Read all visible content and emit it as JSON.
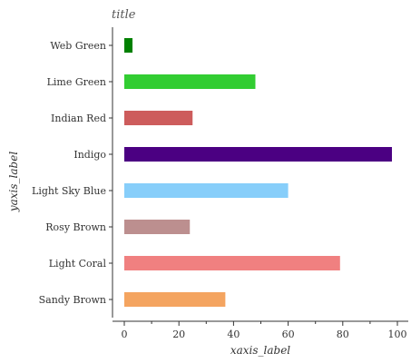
{
  "chart_data": {
    "type": "bar",
    "orientation": "horizontal",
    "title": "title",
    "xlabel": "xaxis_label",
    "ylabel": "yaxis_label",
    "xlim": [
      0,
      100
    ],
    "xticks": [
      0,
      20,
      40,
      60,
      80,
      100
    ],
    "grid": false,
    "categories": [
      "Sandy Brown",
      "Light Coral",
      "Rosy Brown",
      "Light Sky Blue",
      "Indigo",
      "Indian Red",
      "Lime Green",
      "Web Green"
    ],
    "values": [
      37,
      79,
      24,
      60,
      98,
      25,
      48,
      3
    ],
    "colors": [
      "#f4a460",
      "#f08080",
      "#bc8f8f",
      "#87cefa",
      "#4b0082",
      "#cd5c5c",
      "#32cd32",
      "#008000"
    ]
  }
}
